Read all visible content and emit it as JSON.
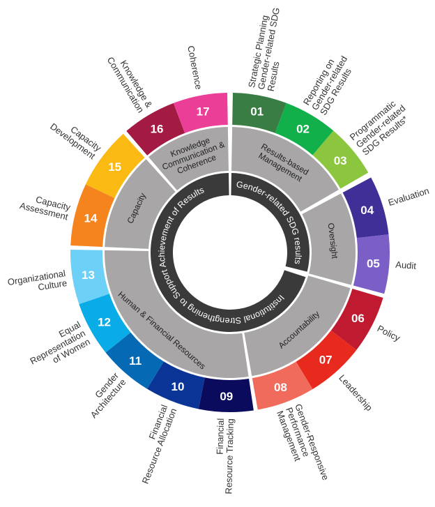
{
  "colors": {
    "gray_ring": "#a8a6a6",
    "dark_ring": "#3a3a3a",
    "outer_text": "#333333"
  },
  "core_ring": [
    {
      "label": "Gender-related  SDG results"
    },
    {
      "label": "Institutional Strengthening to Support Achievement of Results"
    }
  ],
  "groups": [
    {
      "label": [
        "Results-based",
        "Management"
      ],
      "items": [
        {
          "number": "01",
          "color": "#3a7d44",
          "label": [
            "Strategic Planning",
            "Gender-related SDG",
            "Results"
          ]
        },
        {
          "number": "02",
          "color": "#12b04a",
          "label": [
            "Reporting on",
            "Gender-related",
            "SDG Results"
          ]
        },
        {
          "number": "03",
          "color": "#8cc63f",
          "label": [
            "Programmatic",
            "Gender-related",
            "SDG Results*"
          ]
        }
      ]
    },
    {
      "label": [
        "Oversight"
      ],
      "items": [
        {
          "number": "04",
          "color": "#3f2f96",
          "label": [
            "Evaluation"
          ]
        },
        {
          "number": "05",
          "color": "#7b5ec6",
          "label": [
            "Audit"
          ]
        }
      ]
    },
    {
      "label": [
        "Accountability"
      ],
      "items": [
        {
          "number": "06",
          "color": "#bf1a2f",
          "label": [
            "Policy"
          ]
        },
        {
          "number": "07",
          "color": "#e8291e",
          "label": [
            "Leadership"
          ]
        },
        {
          "number": "08",
          "color": "#f06b5b",
          "label": [
            "Gender-Responsive",
            "Performance",
            "Management"
          ]
        }
      ]
    },
    {
      "label": [
        "Human & Financial Resources"
      ],
      "items": [
        {
          "number": "09",
          "color": "#0b0b5e",
          "label": [
            "Financial",
            "Resource Tracking"
          ]
        },
        {
          "number": "10",
          "color": "#0a3596",
          "label": [
            "Financial",
            "Resource Allocation"
          ]
        },
        {
          "number": "11",
          "color": "#056ab3",
          "label": [
            "Gender",
            "Architecture"
          ]
        },
        {
          "number": "12",
          "color": "#0aace8",
          "label": [
            "Equal",
            "Representation",
            "of Women"
          ]
        },
        {
          "number": "13",
          "color": "#6dd0f6",
          "label": [
            "Organizational",
            "Culture"
          ]
        }
      ]
    },
    {
      "label": [
        "Capacity"
      ],
      "items": [
        {
          "number": "14",
          "color": "#f5841f",
          "label": [
            "Capacity",
            "Assessment"
          ]
        },
        {
          "number": "15",
          "color": "#fbb914",
          "label": [
            "Capacity",
            "Development"
          ]
        }
      ]
    },
    {
      "label": [
        "Knowledge",
        "Communication &",
        "Coherence"
      ],
      "items": [
        {
          "number": "16",
          "color": "#a31b43",
          "label": [
            "Knowledge &",
            "Communication"
          ]
        },
        {
          "number": "17",
          "color": "#eb3f97",
          "label": [
            "Coherence"
          ]
        }
      ]
    }
  ]
}
